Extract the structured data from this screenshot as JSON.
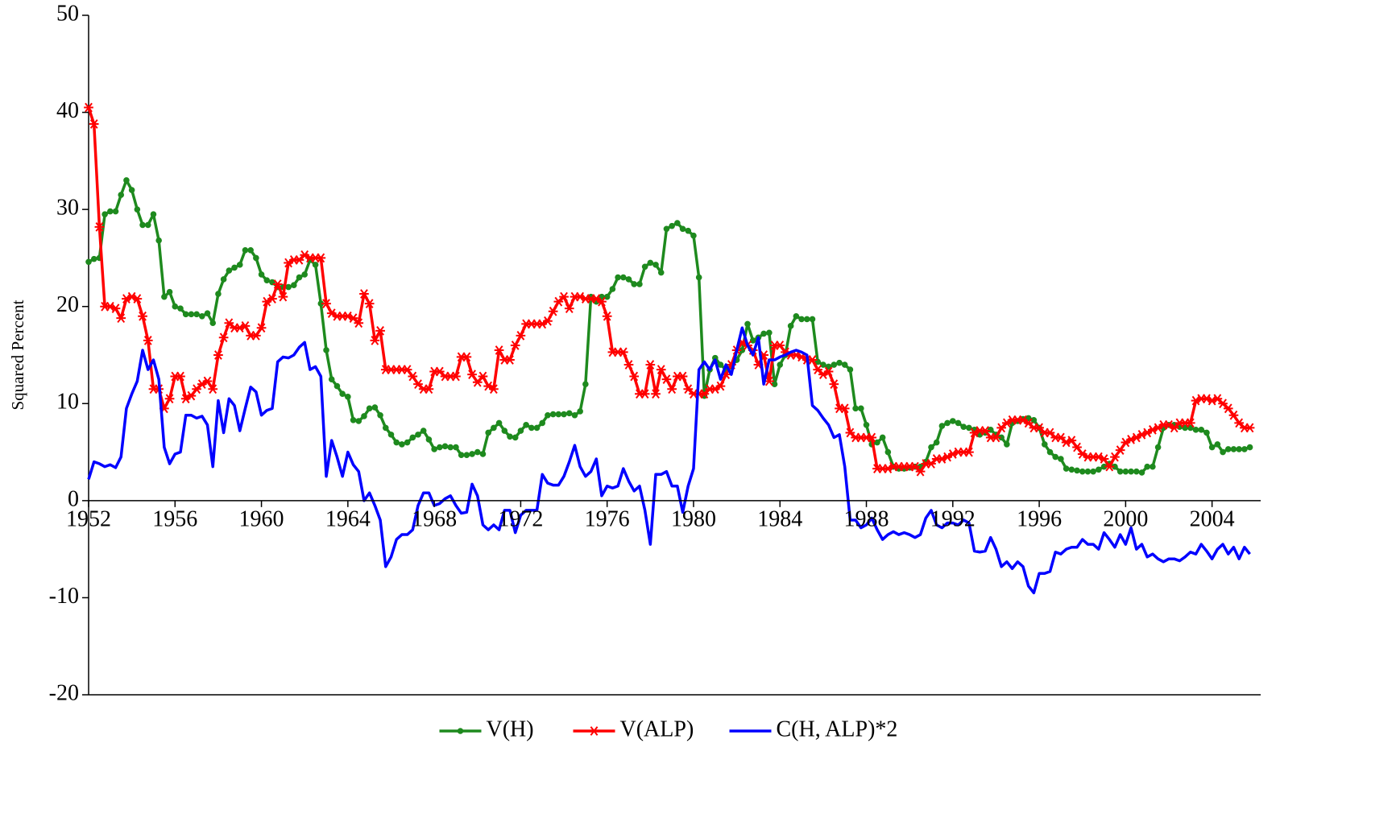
{
  "chart_data": {
    "type": "line",
    "y_label": "Squared Percent",
    "x": [
      1952,
      1952.25,
      1952.5,
      1952.75,
      1953,
      1953.25,
      1953.5,
      1953.75,
      1954,
      1954.25,
      1954.5,
      1954.75,
      1955,
      1955.25,
      1955.5,
      1955.75,
      1956,
      1956.25,
      1956.5,
      1956.75,
      1957,
      1957.25,
      1957.5,
      1957.75,
      1958,
      1958.25,
      1958.5,
      1958.75,
      1959,
      1959.25,
      1959.5,
      1959.75,
      1960,
      1960.25,
      1960.5,
      1960.75,
      1961,
      1961.25,
      1961.5,
      1961.75,
      1962,
      1962.25,
      1962.5,
      1962.75,
      1963,
      1963.25,
      1963.5,
      1963.75,
      1964,
      1964.25,
      1964.5,
      1964.75,
      1965,
      1965.25,
      1965.5,
      1965.75,
      1966,
      1966.25,
      1966.5,
      1966.75,
      1967,
      1967.25,
      1967.5,
      1967.75,
      1968,
      1968.25,
      1968.5,
      1968.75,
      1969,
      1969.25,
      1969.5,
      1969.75,
      1970,
      1970.25,
      1970.5,
      1970.75,
      1971,
      1971.25,
      1971.5,
      1971.75,
      1972,
      1972.25,
      1972.5,
      1972.75,
      1973,
      1973.25,
      1973.5,
      1973.75,
      1974,
      1974.25,
      1974.5,
      1974.75,
      1975,
      1975.25,
      1975.5,
      1975.75,
      1976,
      1976.25,
      1976.5,
      1976.75,
      1977,
      1977.25,
      1977.5,
      1977.75,
      1978,
      1978.25,
      1978.5,
      1978.75,
      1979,
      1979.25,
      1979.5,
      1979.75,
      1980,
      1980.25,
      1980.5,
      1980.75,
      1981,
      1981.25,
      1981.5,
      1981.75,
      1982,
      1982.25,
      1982.5,
      1982.75,
      1983,
      1983.25,
      1983.5,
      1983.75,
      1984,
      1984.25,
      1984.5,
      1984.75,
      1985,
      1985.25,
      1985.5,
      1985.75,
      1986,
      1986.25,
      1986.5,
      1986.75,
      1987,
      1987.25,
      1987.5,
      1987.75,
      1988,
      1988.25,
      1988.5,
      1988.75,
      1989,
      1989.25,
      1989.5,
      1989.75,
      1990,
      1990.25,
      1990.5,
      1990.75,
      1991,
      1991.25,
      1991.5,
      1991.75,
      1992,
      1992.25,
      1992.5,
      1992.75,
      1993,
      1993.25,
      1993.5,
      1993.75,
      1994,
      1994.25,
      1994.5,
      1994.75,
      1995,
      1995.25,
      1995.5,
      1995.75,
      1996,
      1996.25,
      1996.5,
      1996.75,
      1997,
      1997.25,
      1997.5,
      1997.75,
      1998,
      1998.25,
      1998.5,
      1998.75,
      1999,
      1999.25,
      1999.5,
      1999.75,
      2000,
      2000.25,
      2000.5,
      2000.75,
      2001,
      2001.25,
      2001.5,
      2001.75,
      2002,
      2002.25,
      2002.5,
      2002.75,
      2003,
      2003.25,
      2003.5,
      2003.75,
      2004,
      2004.25,
      2004.5,
      2004.75,
      2005,
      2005.25,
      2005.5,
      2005.75
    ],
    "series": [
      {
        "name": "V(H)",
        "color": "#1e8a1e",
        "marker": "circle",
        "values": [
          24.6,
          24.9,
          25.0,
          29.5,
          29.8,
          29.8,
          31.5,
          33.0,
          32.0,
          30.0,
          28.4,
          28.4,
          29.5,
          26.8,
          21.0,
          21.5,
          20.0,
          19.8,
          19.2,
          19.2,
          19.2,
          19.0,
          19.3,
          18.3,
          21.3,
          22.8,
          23.7,
          24.0,
          24.3,
          25.8,
          25.8,
          25.0,
          23.3,
          22.7,
          22.5,
          22.0,
          22.0,
          22.0,
          22.2,
          23.0,
          23.3,
          24.8,
          24.3,
          20.3,
          15.5,
          12.5,
          11.8,
          11.0,
          10.7,
          8.3,
          8.2,
          8.7,
          9.5,
          9.6,
          8.8,
          7.5,
          6.8,
          6.0,
          5.8,
          6.0,
          6.5,
          6.8,
          7.2,
          6.3,
          5.3,
          5.5,
          5.6,
          5.5,
          5.5,
          4.7,
          4.7,
          4.8,
          5.0,
          4.8,
          7.0,
          7.5,
          8.0,
          7.2,
          6.6,
          6.5,
          7.2,
          7.8,
          7.5,
          7.5,
          8.0,
          8.8,
          8.9,
          8.9,
          8.9,
          9.0,
          8.8,
          9.2,
          12.0,
          21.0,
          20.5,
          21.0,
          21.0,
          21.8,
          23.0,
          23.0,
          22.8,
          22.3,
          22.3,
          24.1,
          24.5,
          24.3,
          23.5,
          28.0,
          28.3,
          28.6,
          28.0,
          27.8,
          27.3,
          23.0,
          10.8,
          13.5,
          14.7,
          14.0,
          13.5,
          13.8,
          14.5,
          15.5,
          18.2,
          16.5,
          16.8,
          17.2,
          17.3,
          12.0,
          14.0,
          15.0,
          18.0,
          19.0,
          18.7,
          18.7,
          18.7,
          14.3,
          14.0,
          13.8,
          14.0,
          14.2,
          14.0,
          13.5,
          9.5,
          9.5,
          7.8,
          5.8,
          6.0,
          6.5,
          5.0,
          3.5,
          3.3,
          3.3,
          3.4,
          3.5,
          3.5,
          4.0,
          5.5,
          6.0,
          7.7,
          8.0,
          8.2,
          8.0,
          7.6,
          7.5,
          7.3,
          6.8,
          7.0,
          7.3,
          6.8,
          6.5,
          5.8,
          8.0,
          8.2,
          8.4,
          8.5,
          8.3,
          7.5,
          5.8,
          5.0,
          4.5,
          4.3,
          3.3,
          3.2,
          3.1,
          3.0,
          3.0,
          3.0,
          3.2,
          3.5,
          3.8,
          3.5,
          3.0,
          3.0,
          3.0,
          3.0,
          2.9,
          3.5,
          3.5,
          5.5,
          7.5,
          7.8,
          7.8,
          7.6,
          7.5,
          7.5,
          7.3,
          7.3,
          7.0,
          5.5,
          5.8,
          5.0,
          5.3,
          5.3,
          5.3,
          5.3,
          5.5
        ]
      },
      {
        "name": "V(ALP)",
        "color": "#ff0000",
        "marker": "star",
        "values": [
          40.5,
          38.8,
          28.2,
          20.0,
          20.0,
          19.8,
          18.8,
          20.8,
          21.0,
          20.8,
          19.0,
          16.5,
          11.5,
          11.5,
          9.5,
          10.5,
          12.8,
          12.8,
          10.5,
          10.8,
          11.5,
          12.0,
          12.3,
          11.5,
          15.0,
          16.8,
          18.3,
          17.8,
          17.8,
          18.0,
          17.0,
          17.0,
          17.8,
          20.5,
          20.8,
          22.3,
          21.0,
          24.5,
          24.8,
          24.8,
          25.3,
          25.0,
          25.0,
          25.0,
          20.3,
          19.3,
          19.0,
          19.0,
          19.0,
          18.8,
          18.3,
          21.3,
          20.3,
          16.5,
          17.5,
          13.5,
          13.5,
          13.5,
          13.5,
          13.5,
          12.8,
          12.0,
          11.5,
          11.5,
          13.3,
          13.3,
          12.8,
          12.8,
          12.8,
          14.8,
          14.8,
          13.0,
          12.2,
          12.8,
          11.8,
          11.5,
          15.5,
          14.5,
          14.5,
          16.0,
          17.0,
          18.2,
          18.2,
          18.2,
          18.2,
          18.5,
          19.5,
          20.5,
          21.0,
          19.8,
          21.0,
          21.0,
          20.8,
          20.8,
          20.8,
          20.5,
          19.0,
          15.3,
          15.3,
          15.3,
          14.0,
          12.8,
          11.0,
          11.0,
          14.0,
          11.0,
          13.5,
          12.5,
          11.5,
          12.8,
          12.8,
          11.5,
          11.0,
          11.0,
          11.0,
          11.5,
          11.5,
          11.8,
          13.0,
          14.0,
          15.5,
          16.3,
          16.0,
          15.5,
          14.0,
          15.0,
          12.3,
          16.0,
          16.0,
          15.3,
          15.0,
          15.0,
          14.8,
          14.5,
          14.5,
          13.5,
          13.0,
          13.3,
          12.0,
          9.5,
          9.5,
          7.0,
          6.5,
          6.5,
          6.5,
          6.5,
          3.3,
          3.3,
          3.3,
          3.5,
          3.5,
          3.5,
          3.5,
          3.5,
          3.0,
          3.8,
          3.8,
          4.3,
          4.3,
          4.5,
          4.8,
          5.0,
          5.0,
          5.0,
          7.0,
          7.2,
          7.2,
          6.5,
          6.5,
          7.5,
          8.0,
          8.3,
          8.3,
          8.3,
          8.0,
          7.5,
          7.5,
          7.0,
          7.0,
          6.5,
          6.5,
          6.0,
          6.2,
          5.5,
          4.8,
          4.5,
          4.5,
          4.5,
          4.3,
          3.5,
          4.5,
          5.2,
          6.0,
          6.3,
          6.5,
          6.8,
          7.0,
          7.3,
          7.5,
          7.8,
          7.8,
          7.5,
          8.0,
          8.0,
          8.0,
          10.3,
          10.5,
          10.5,
          10.3,
          10.5,
          10.0,
          9.5,
          8.8,
          8.0,
          7.5,
          7.5
        ]
      },
      {
        "name": "C(H, ALP)*2",
        "color": "#0000ff",
        "marker": "none",
        "values": [
          2.2,
          4.0,
          3.8,
          3.5,
          3.7,
          3.4,
          4.5,
          9.5,
          11.0,
          12.3,
          15.5,
          13.5,
          14.5,
          12.5,
          5.5,
          3.8,
          4.8,
          5.0,
          8.8,
          8.8,
          8.5,
          8.7,
          7.8,
          3.5,
          10.3,
          7.0,
          10.5,
          9.8,
          7.2,
          9.5,
          11.7,
          11.2,
          8.8,
          9.3,
          9.5,
          14.3,
          14.8,
          14.7,
          15.0,
          15.8,
          16.3,
          13.5,
          13.8,
          12.8,
          2.5,
          6.2,
          4.5,
          2.5,
          5.0,
          3.7,
          3.0,
          0.0,
          0.8,
          -0.5,
          -2.0,
          -6.8,
          -5.8,
          -4.0,
          -3.5,
          -3.5,
          -3.0,
          -0.5,
          0.8,
          0.8,
          -0.5,
          -0.3,
          0.2,
          0.5,
          -0.5,
          -1.3,
          -1.2,
          1.7,
          0.5,
          -2.5,
          -3.0,
          -2.5,
          -3.0,
          -1.0,
          -1.0,
          -3.3,
          -1.5,
          -1.0,
          -1.0,
          -1.0,
          2.7,
          1.8,
          1.6,
          1.6,
          2.5,
          4.0,
          5.7,
          3.5,
          2.5,
          3.0,
          4.3,
          0.5,
          1.5,
          1.3,
          1.5,
          3.3,
          2.0,
          1.0,
          1.5,
          -1.0,
          -4.5,
          2.7,
          2.7,
          3.0,
          1.5,
          1.5,
          -1.2,
          1.5,
          3.3,
          13.5,
          14.3,
          13.5,
          14.5,
          12.5,
          14.0,
          13.0,
          15.5,
          17.8,
          16.0,
          15.0,
          16.8,
          12.0,
          14.5,
          14.5,
          14.8,
          15.0,
          15.3,
          15.5,
          15.3,
          15.0,
          9.8,
          9.3,
          8.5,
          7.8,
          6.5,
          6.8,
          3.5,
          -2.0,
          -2.0,
          -2.8,
          -2.5,
          -1.8,
          -3.0,
          -4.0,
          -3.5,
          -3.2,
          -3.5,
          -3.3,
          -3.5,
          -3.8,
          -3.5,
          -1.8,
          -1.0,
          -2.5,
          -2.8,
          -2.3,
          -2.3,
          -2.5,
          -2.0,
          -2.3,
          -5.2,
          -5.3,
          -5.2,
          -3.8,
          -5.0,
          -6.8,
          -6.3,
          -7.0,
          -6.3,
          -6.8,
          -8.8,
          -9.5,
          -7.5,
          -7.5,
          -7.3,
          -5.3,
          -5.5,
          -5.0,
          -4.8,
          -4.8,
          -4.0,
          -4.5,
          -4.5,
          -5.0,
          -3.3,
          -4.0,
          -4.8,
          -3.5,
          -4.5,
          -2.8,
          -5.0,
          -4.5,
          -5.8,
          -5.5,
          -6.0,
          -6.3,
          -6.0,
          -6.0,
          -6.2,
          -5.8,
          -5.3,
          -5.5,
          -4.5,
          -5.2,
          -6.0,
          -5.0,
          -4.5,
          -5.5,
          -4.8,
          -6.0,
          -4.8,
          -5.5
        ]
      }
    ],
    "xlim": [
      1952,
      2006.25
    ],
    "xticks": [
      1952,
      1956,
      1960,
      1964,
      1968,
      1972,
      1976,
      1980,
      1984,
      1988,
      1992,
      1996,
      2000,
      2004
    ],
    "ylim": [
      -20,
      50
    ],
    "yticks": [
      -20,
      -10,
      0,
      10,
      20,
      30,
      40,
      50
    ],
    "grid": false,
    "legend": "bottom"
  }
}
